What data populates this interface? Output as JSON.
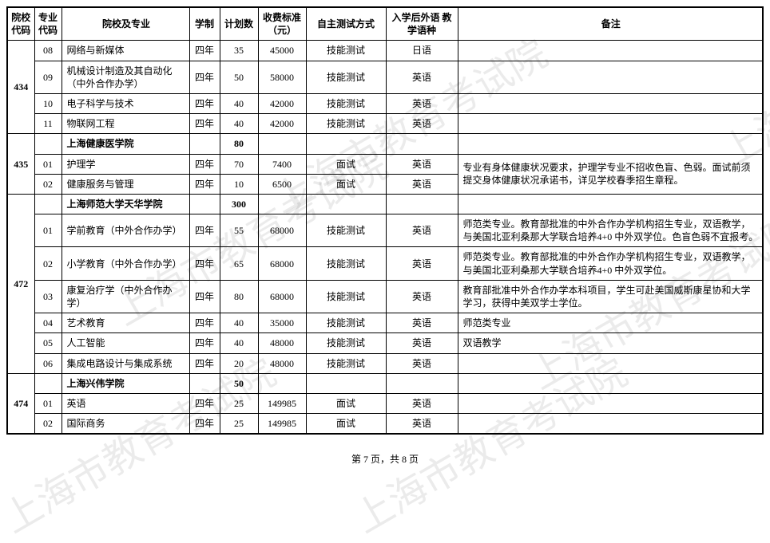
{
  "watermark_text": "上海市教育考试院",
  "headers": {
    "code": "院校\n代码",
    "major": "专业\n代码",
    "name": "院校及专业",
    "dur": "学制",
    "plan": "计划数",
    "fee": "收费标准\n（元）",
    "test": "自主测试方式",
    "lang": "入学后外语\n教学语种",
    "note": "备注"
  },
  "groups": [
    {
      "code": "434",
      "header": null,
      "rows": [
        {
          "major": "08",
          "name": "网络与新媒体",
          "dur": "四年",
          "plan": "35",
          "fee": "45000",
          "test": "技能测试",
          "lang": "日语",
          "note": ""
        },
        {
          "major": "09",
          "name": "机械设计制造及其自动化（中外合作办学）",
          "dur": "四年",
          "plan": "50",
          "fee": "58000",
          "test": "技能测试",
          "lang": "英语",
          "note": ""
        },
        {
          "major": "10",
          "name": "电子科学与技术",
          "dur": "四年",
          "plan": "40",
          "fee": "42000",
          "test": "技能测试",
          "lang": "英语",
          "note": ""
        },
        {
          "major": "11",
          "name": "物联网工程",
          "dur": "四年",
          "plan": "40",
          "fee": "42000",
          "test": "技能测试",
          "lang": "英语",
          "note": ""
        }
      ],
      "note_merge": null
    },
    {
      "code": "435",
      "header": {
        "name": "上海健康医学院",
        "plan": "80"
      },
      "rows": [
        {
          "major": "01",
          "name": "护理学",
          "dur": "四年",
          "plan": "70",
          "fee": "7400",
          "test": "面试",
          "lang": "英语"
        },
        {
          "major": "02",
          "name": "健康服务与管理",
          "dur": "四年",
          "plan": "10",
          "fee": "6500",
          "test": "面试",
          "lang": "英语"
        }
      ],
      "note_merge": "专业有身体健康状况要求，护理学专业不招收色盲、色弱。面试前须提交身体健康状况承诺书，详见学校春季招生章程。"
    },
    {
      "code": "472",
      "header": {
        "name": "上海师范大学天华学院",
        "plan": "300"
      },
      "rows": [
        {
          "major": "01",
          "name": "学前教育（中外合作办学）",
          "dur": "四年",
          "plan": "55",
          "fee": "68000",
          "test": "技能测试",
          "lang": "英语",
          "note": "师范类专业。教育部批准的中外合作办学机构招生专业，双语教学，与美国北亚利桑那大学联合培养4+0 中外双学位。色盲色弱不宜报考。"
        },
        {
          "major": "02",
          "name": "小学教育（中外合作办学）",
          "dur": "四年",
          "plan": "65",
          "fee": "68000",
          "test": "技能测试",
          "lang": "英语",
          "note": "师范类专业。教育部批准的中外合作办学机构招生专业，双语教学，与美国北亚利桑那大学联合培养4+0 中外双学位。"
        },
        {
          "major": "03",
          "name": "康复治疗学（中外合作办学）",
          "dur": "四年",
          "plan": "80",
          "fee": "68000",
          "test": "技能测试",
          "lang": "英语",
          "note": "教育部批准中外合作办学本科项目，学生可赴美国威斯康星协和大学学习，获得中美双学士学位。"
        },
        {
          "major": "04",
          "name": "艺术教育",
          "dur": "四年",
          "plan": "40",
          "fee": "35000",
          "test": "技能测试",
          "lang": "英语",
          "note": "师范类专业"
        },
        {
          "major": "05",
          "name": "人工智能",
          "dur": "四年",
          "plan": "40",
          "fee": "48000",
          "test": "技能测试",
          "lang": "英语",
          "note": "双语教学"
        },
        {
          "major": "06",
          "name": "集成电路设计与集成系统",
          "dur": "四年",
          "plan": "20",
          "fee": "48000",
          "test": "技能测试",
          "lang": "英语",
          "note": ""
        }
      ],
      "note_merge": null
    },
    {
      "code": "474",
      "header": {
        "name": "上海兴伟学院",
        "plan": "50"
      },
      "rows": [
        {
          "major": "01",
          "name": "英语",
          "dur": "四年",
          "plan": "25",
          "fee": "149985",
          "test": "面试",
          "lang": "英语",
          "note": ""
        },
        {
          "major": "02",
          "name": "国际商务",
          "dur": "四年",
          "plan": "25",
          "fee": "149985",
          "test": "面试",
          "lang": "英语",
          "note": ""
        }
      ],
      "note_merge": null
    }
  ],
  "pager": "第 7 页，共 8 页"
}
